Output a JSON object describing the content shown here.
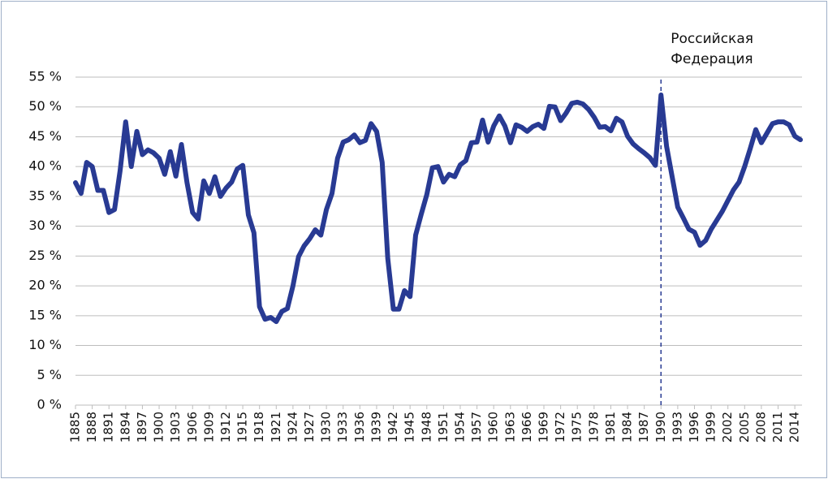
{
  "chart_data": {
    "type": "line",
    "x": [
      1885,
      1886,
      1887,
      1888,
      1889,
      1890,
      1891,
      1892,
      1893,
      1894,
      1895,
      1896,
      1897,
      1898,
      1899,
      1900,
      1901,
      1902,
      1903,
      1904,
      1905,
      1906,
      1907,
      1908,
      1909,
      1910,
      1911,
      1912,
      1913,
      1914,
      1915,
      1916,
      1917,
      1918,
      1919,
      1920,
      1921,
      1922,
      1923,
      1924,
      1925,
      1926,
      1927,
      1928,
      1929,
      1930,
      1931,
      1932,
      1933,
      1934,
      1935,
      1936,
      1937,
      1938,
      1939,
      1940,
      1941,
      1942,
      1943,
      1944,
      1945,
      1946,
      1947,
      1948,
      1949,
      1950,
      1951,
      1952,
      1953,
      1954,
      1955,
      1956,
      1957,
      1958,
      1959,
      1960,
      1961,
      1962,
      1963,
      1964,
      1965,
      1966,
      1967,
      1968,
      1969,
      1970,
      1971,
      1972,
      1973,
      1974,
      1975,
      1976,
      1977,
      1978,
      1979,
      1980,
      1981,
      1982,
      1983,
      1984,
      1985,
      1986,
      1987,
      1988,
      1989,
      1990,
      1991,
      1992,
      1993,
      1994,
      1995,
      1996,
      1997,
      1998,
      1999,
      2000,
      2001,
      2002,
      2003,
      2004,
      2005,
      2006,
      2007,
      2008,
      2009,
      2010,
      2011,
      2012,
      2013,
      2014,
      2015
    ],
    "series": [
      {
        "color": "#283a93",
        "values": [
          37.3,
          35.5,
          40.7,
          40,
          36,
          36,
          32.3,
          32.8,
          39.3,
          47.5,
          40,
          45.9,
          42,
          42.8,
          42.3,
          41.4,
          38.7,
          42.5,
          38.4,
          43.7,
          37.3,
          32.3,
          31.2,
          37.6,
          35.5,
          38.3,
          35,
          36.4,
          37.4,
          39.6,
          40.2,
          31.9,
          28.9,
          16.5,
          14.4,
          14.7,
          14,
          15.7,
          16.2,
          20,
          24.9,
          26.7,
          27.9,
          29.4,
          28.5,
          32.8,
          35.5,
          41.4,
          44.1,
          44.5,
          45.3,
          44,
          44.4,
          47.2,
          45.9,
          40.7,
          24.6,
          16.1,
          16.1,
          19.2,
          18.2,
          28.5,
          32,
          35.3,
          39.8,
          40,
          37.4,
          38.7,
          38.3,
          40.3,
          41,
          44,
          44.1,
          47.8,
          44.1,
          46.8,
          48.5,
          46.8,
          44,
          47,
          46.6,
          45.9,
          46.7,
          47.1,
          46.4,
          50.1,
          50,
          47.7,
          49,
          50.6,
          50.8,
          50.5,
          49.6,
          48.3,
          46.6,
          46.7,
          46,
          48.1,
          47.5,
          45.1,
          43.8,
          43,
          42.3,
          41.5,
          40.2,
          52,
          43.4,
          38.3,
          33.2,
          31.4,
          29.5,
          29,
          26.8,
          27.6,
          29.5,
          31,
          32.5,
          34.3,
          36.1,
          37.4,
          40,
          43,
          46.2,
          44,
          45.6,
          47.2,
          47.5,
          47.5,
          47,
          45.1,
          44.5
        ]
      }
    ],
    "xlim": [
      1885,
      2015
    ],
    "xticks": [
      1885,
      1888,
      1891,
      1894,
      1897,
      1900,
      1903,
      1906,
      1909,
      1912,
      1915,
      1918,
      1921,
      1924,
      1927,
      1930,
      1933,
      1936,
      1939,
      1942,
      1945,
      1948,
      1951,
      1954,
      1957,
      1960,
      1963,
      1966,
      1969,
      1972,
      1975,
      1978,
      1981,
      1984,
      1987,
      1990,
      1993,
      1996,
      1999,
      2002,
      2005,
      2008,
      2011,
      2014
    ],
    "ylim": [
      0,
      55
    ],
    "yticks": [
      {
        "value": 0,
        "label": "0 %"
      },
      {
        "value": 5,
        "label": "5 %"
      },
      {
        "value": 10,
        "label": "10 %"
      },
      {
        "value": 15,
        "label": "15 %"
      },
      {
        "value": 20,
        "label": "20 %"
      },
      {
        "value": 25,
        "label": "25 %"
      },
      {
        "value": 30,
        "label": "30 %"
      },
      {
        "value": 35,
        "label": "35 %"
      },
      {
        "value": 40,
        "label": "40 %"
      },
      {
        "value": 45,
        "label": "45 %"
      },
      {
        "value": 50,
        "label": "50 %"
      },
      {
        "value": 55,
        "label": "55 %"
      }
    ],
    "grid": true,
    "vline": {
      "x": 1990,
      "label": [
        "Российская",
        "Федерация"
      ]
    }
  }
}
